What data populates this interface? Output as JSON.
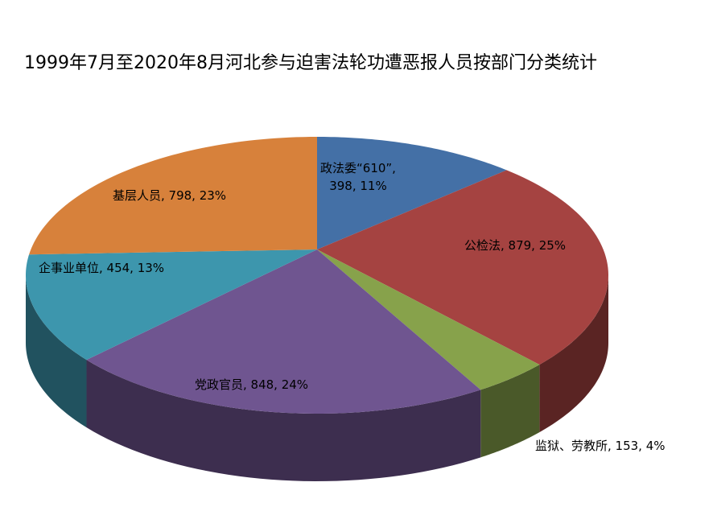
{
  "chart_data": {
    "type": "pie",
    "title": "1999年7月至2020年8月河北参与迫害法轮功遭恶报人员按部门分类统计",
    "three_d": true,
    "start_angle": "12 o'clock",
    "direction": "clockwise",
    "slices": [
      {
        "name": "政法委“610”",
        "value": 398,
        "percent": "11%",
        "label": "政法委“610”,",
        "label2": "398, 11%",
        "color": "#4470a6"
      },
      {
        "name": "公检法",
        "value": 879,
        "percent": "25%",
        "label": "公检法, 879, 25%",
        "color": "#a54341"
      },
      {
        "name": "监狱、劳教所",
        "value": 153,
        "percent": "4%",
        "label": "监狱、劳教所, 153, 4%",
        "color": "#87a24b"
      },
      {
        "name": "党政官员",
        "value": 848,
        "percent": "24%",
        "label": "党政官员, 848, 24%",
        "color": "#6f5590"
      },
      {
        "name": "企事业单位",
        "value": 454,
        "percent": "13%",
        "label": "企事业单位, 454, 13%",
        "color": "#3d96ad"
      },
      {
        "name": "基层人员",
        "value": 798,
        "percent": "23%",
        "label": "基层人员, 798, 23%",
        "color": "#d7813b"
      }
    ]
  }
}
